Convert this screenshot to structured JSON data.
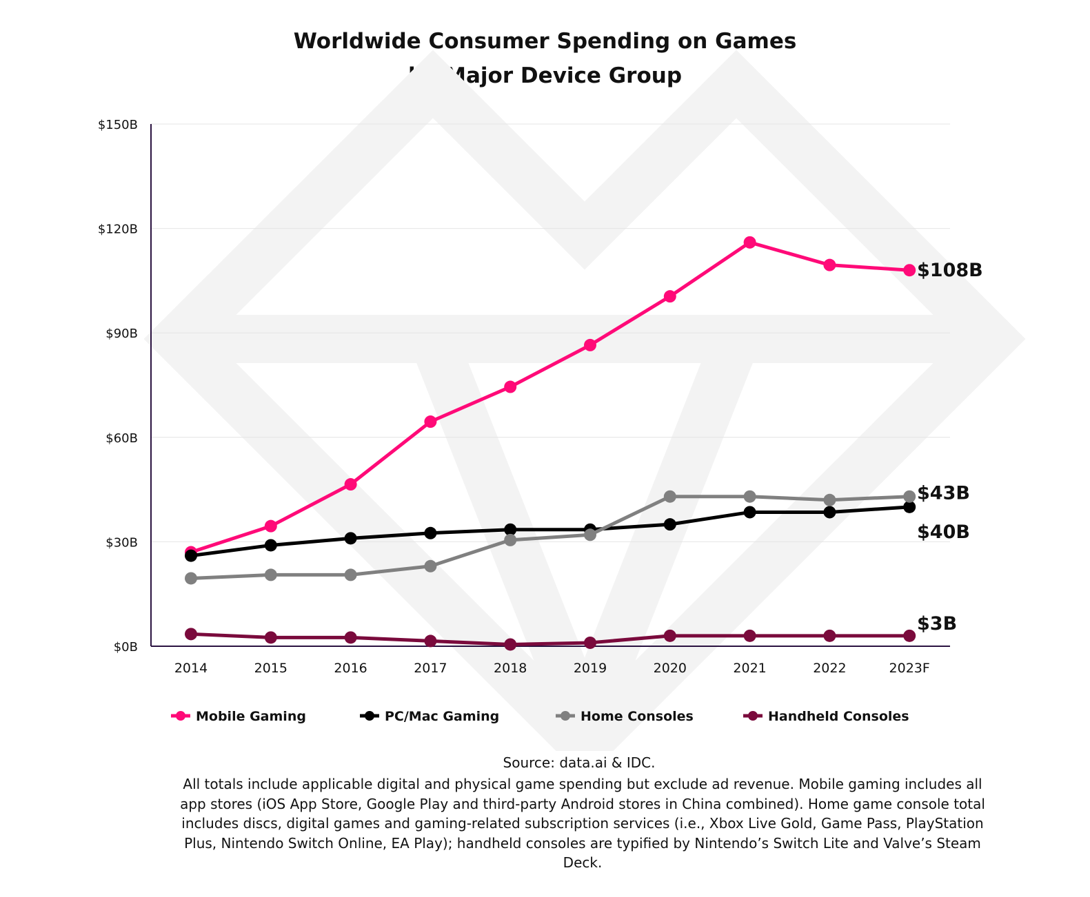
{
  "chart_data": {
    "type": "line",
    "title": "Worldwide Consumer Spending on Games",
    "subtitle": "by Major Device Group",
    "xlabel": "",
    "ylabel": "",
    "categories": [
      "2014",
      "2015",
      "2016",
      "2017",
      "2018",
      "2019",
      "2020",
      "2021",
      "2022",
      "2023F"
    ],
    "ylim": [
      0,
      150
    ],
    "yticks": [
      0,
      30,
      60,
      90,
      120,
      150
    ],
    "ytick_labels": [
      "$0B",
      "$30B",
      "$60B",
      "$90B",
      "$120B",
      "$150B"
    ],
    "grid": true,
    "legend_position": "bottom",
    "series": [
      {
        "name": "Mobile Gaming",
        "color": "#ff0a78",
        "values": [
          27,
          34.5,
          46.5,
          64.5,
          74.5,
          86.5,
          100.5,
          116,
          109.5,
          108
        ],
        "end_label": "$108B"
      },
      {
        "name": "PC/Mac Gaming",
        "color": "#000000",
        "values": [
          26,
          29,
          31,
          32.5,
          33.5,
          33.5,
          35,
          38.5,
          38.5,
          40
        ],
        "end_label": "$40B"
      },
      {
        "name": "Home Consoles",
        "color": "#808080",
        "values": [
          19.5,
          20.5,
          20.5,
          23,
          30.5,
          32,
          43,
          43,
          42,
          43
        ],
        "end_label": "$43B"
      },
      {
        "name": "Handheld Consoles",
        "color": "#7a0a3c",
        "values": [
          3.5,
          2.5,
          2.5,
          1.5,
          0.5,
          1,
          3,
          3,
          3,
          3
        ],
        "end_label": "$3B"
      }
    ]
  },
  "source": "Source: data.ai & IDC.",
  "note": "All totals include applicable digital and physical game spending but exclude ad revenue. Mobile gaming includes all app stores (iOS App Store, Google Play and third-party Android stores in China combined). Home game console total includes discs, digital games and gaming-related subscription services (i.e., Xbox Live Gold, Game Pass, PlayStation Plus, Nintendo Switch Online, EA Play); handheld consoles are typified by Nintendo’s Switch Lite and Valve’s Steam Deck."
}
